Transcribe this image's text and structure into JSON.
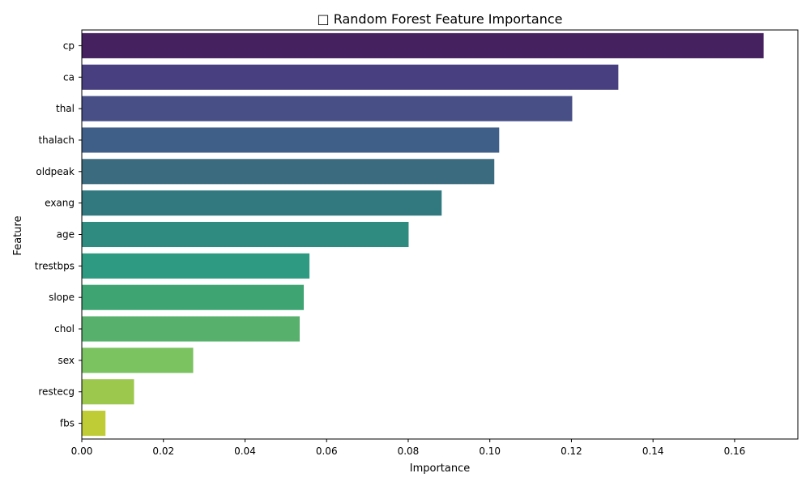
{
  "chart_data": {
    "type": "bar",
    "orientation": "horizontal",
    "title": "□ Random Forest Feature Importance",
    "xlabel": "Importance",
    "ylabel": "Feature",
    "xlim": [
      0,
      0.1755
    ],
    "xticks": [
      0.0,
      0.02,
      0.04,
      0.06,
      0.08,
      0.1,
      0.12,
      0.14,
      0.16
    ],
    "xtick_labels": [
      "0.00",
      "0.02",
      "0.04",
      "0.06",
      "0.08",
      "0.10",
      "0.12",
      "0.14",
      "0.16"
    ],
    "grid": false,
    "legend": "none",
    "palette": "viridis",
    "categories": [
      "cp",
      "ca",
      "thal",
      "thalach",
      "oldpeak",
      "exang",
      "age",
      "trestbps",
      "slope",
      "chol",
      "sex",
      "restecg",
      "fbs"
    ],
    "values": [
      0.1671,
      0.1315,
      0.1202,
      0.1023,
      0.1011,
      0.0882,
      0.0801,
      0.0558,
      0.0544,
      0.0534,
      0.0273,
      0.0128,
      0.0058
    ],
    "colors": [
      "#46215f",
      "#473f7f",
      "#474f86",
      "#3f5f88",
      "#3b6b7e",
      "#31797f",
      "#2f8a80",
      "#2e9a82",
      "#3da472",
      "#57b06b",
      "#7bc260",
      "#9cc84e",
      "#bfcc35"
    ]
  }
}
